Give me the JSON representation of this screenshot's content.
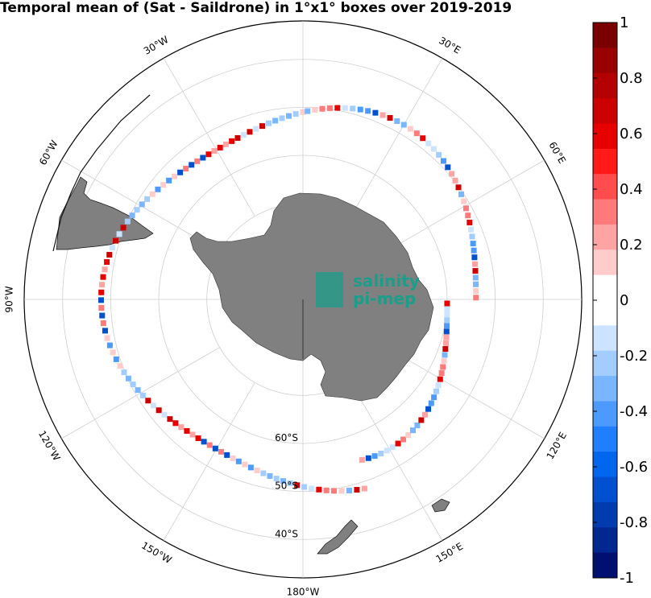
{
  "title": "Temporal mean of (Sat - Saildrone) in 1°x1° boxes over 2019-2019",
  "logo": {
    "line1": "salinity",
    "line2": "pi-mep",
    "color": "#1a9e8a"
  },
  "longitude_labels": [
    {
      "text": "30°W",
      "lon": -30
    },
    {
      "text": "30°E",
      "lon": 30
    },
    {
      "text": "60°W",
      "lon": -60
    },
    {
      "text": "60°E",
      "lon": 60
    },
    {
      "text": "90°W",
      "lon": -90
    },
    {
      "text": "120°W",
      "lon": -120
    },
    {
      "text": "120°E",
      "lon": 120
    },
    {
      "text": "150°W",
      "lon": -150
    },
    {
      "text": "150°E",
      "lon": 150
    },
    {
      "text": "180°W",
      "lon": 180
    }
  ],
  "latitude_labels": [
    {
      "text": "60°S",
      "lat": -60
    },
    {
      "text": "50°S",
      "lat": -50
    },
    {
      "text": "40°S",
      "lat": -40
    }
  ],
  "colorbar": {
    "min": -1,
    "max": 1,
    "tick_labels": [
      "1",
      "0.8",
      "0.6",
      "0.4",
      "0.2",
      "0",
      "-0.2",
      "-0.4",
      "-0.6",
      "-0.8",
      "-1"
    ],
    "colors_top_to_bottom": [
      "#7a0000",
      "#990000",
      "#b30000",
      "#cc0000",
      "#e60000",
      "#ff1a1a",
      "#ff4d4d",
      "#ff7a7a",
      "#ffa3a3",
      "#ffcccc",
      "#ffffff",
      "#ffffff",
      "#cce4ff",
      "#a3cdff",
      "#7ab5ff",
      "#4d9aff",
      "#1f7fff",
      "#0066ee",
      "#0050d0",
      "#003bb0",
      "#002890",
      "#001070"
    ]
  }
}
